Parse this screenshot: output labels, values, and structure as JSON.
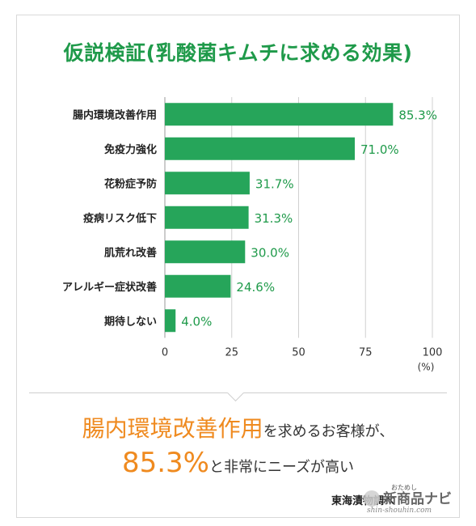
{
  "chart_data": {
    "type": "bar",
    "orientation": "horizontal",
    "title": "仮説検証(乳酸菌キムチに求める効果)",
    "categories": [
      "腸内環境改善作用",
      "免疫力強化",
      "花粉症予防",
      "疫病リスク低下",
      "肌荒れ改善",
      "アレルギー症状改善",
      "期待しない"
    ],
    "values": [
      85.3,
      71.0,
      31.7,
      31.3,
      30.0,
      24.6,
      4.0
    ],
    "value_labels": [
      "85.3%",
      "71.0%",
      "31.7%",
      "31.3%",
      "30.0%",
      "24.6%",
      "4.0%"
    ],
    "xlim": [
      0,
      100
    ],
    "x_ticks": [
      "0",
      "25",
      "50",
      "75",
      "100"
    ],
    "x_unit": "(%)",
    "grid": true,
    "bar_color": "#26a55a",
    "label_color": "#1f9a4a"
  },
  "headline": {
    "line1_highlight": "腸内環境改善作用",
    "line1_rest": "を求めるお客様が、",
    "line2_highlight": "85.3%",
    "line2_rest": "と非常にニーズが高い",
    "highlight_color": "#ef8a1f"
  },
  "source": "東海漬物調べ",
  "watermark": {
    "small": "おためし",
    "main": "新商品ナビ",
    "url": "shin-shouhin.com"
  }
}
